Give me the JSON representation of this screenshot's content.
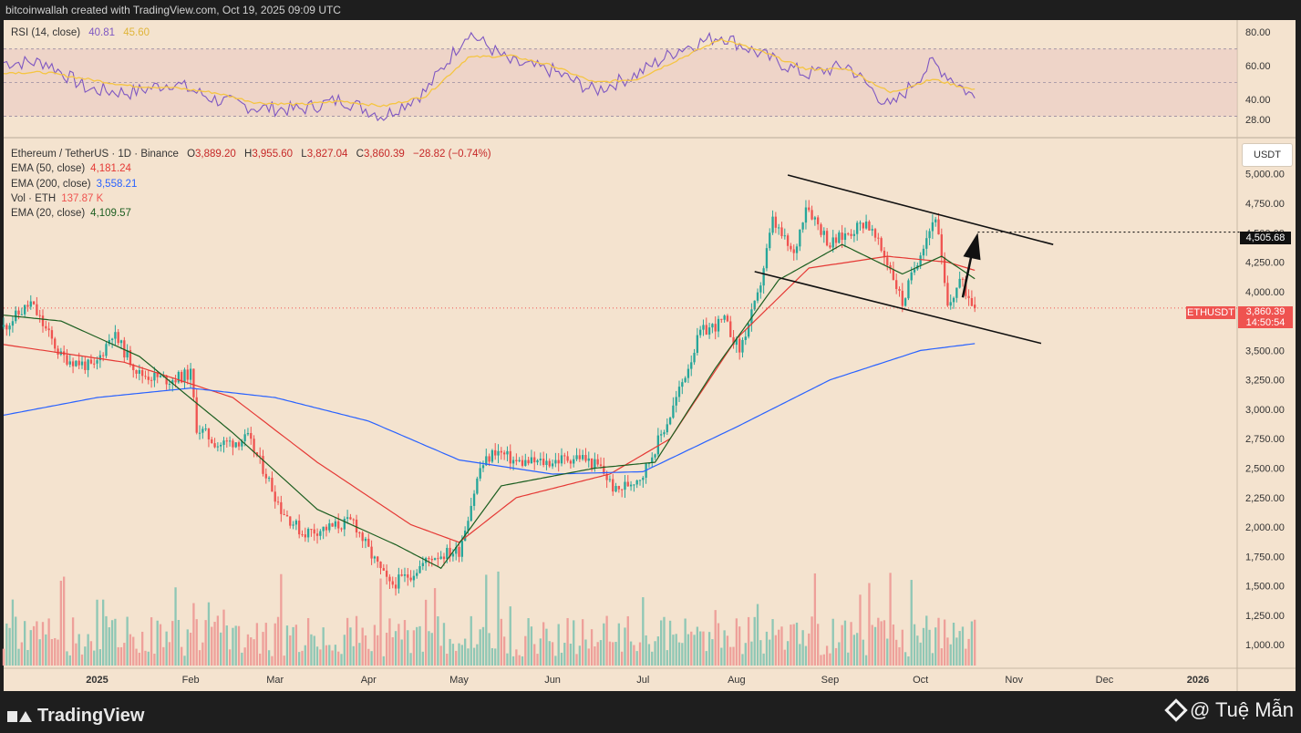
{
  "header": {
    "attribution": "bitcoinwallah created with TradingView.com, Oct 19, 2025 09:09 UTC"
  },
  "rsi_legend": {
    "label": "RSI (14, close)",
    "rsi": "40.81",
    "ma": "45.60"
  },
  "main_legend": {
    "symbol": "Ethereum / TetherUS · 1D · Binance",
    "o_label": "O",
    "o": "3,889.20",
    "h_label": "H",
    "h": "3,955.60",
    "l_label": "L",
    "l": "3,827.04",
    "c_label": "C",
    "c": "3,860.39",
    "change": "−28.82 (−0.74%)",
    "ema50_label": "EMA (50, close)",
    "ema50": "4,181.24",
    "ema200_label": "EMA (200, close)",
    "ema200": "3,558.21",
    "vol_label": "Vol · ETH",
    "vol": "137.87 K",
    "ema20_label": "EMA (20, close)",
    "ema20": "4,109.57"
  },
  "currency_button": "USDT",
  "price_tag": {
    "label": "ETHUSDT",
    "price": "3,860.39",
    "countdown": "14:50:54"
  },
  "target_tag": "4,505.68",
  "footer": {
    "logo": "TradingView",
    "watermark": "@ Tuệ Mẫn"
  },
  "colors": {
    "up": "#26a69a",
    "down": "#ef5350",
    "ema50": "#e53935",
    "ema200": "#2962ff",
    "ema20": "#1b5e20",
    "rsi": "#7e57c2",
    "rsi_ma": "#f5c542"
  },
  "chart_data": [
    {
      "type": "line",
      "name": "RSI (14, close)",
      "ylim": [
        20,
        85
      ],
      "y_ticks": [
        "80.00",
        "60.00",
        "40.00",
        "28.00"
      ],
      "bands": [
        30,
        50,
        70
      ],
      "x": [
        "2024-12-15",
        "2024-12-29",
        "2025-01-12",
        "2025-01-26",
        "2025-02-09",
        "2025-02-23",
        "2025-03-09",
        "2025-03-23",
        "2025-04-06",
        "2025-04-20",
        "2025-05-04",
        "2025-05-18",
        "2025-06-01",
        "2025-06-15",
        "2025-06-29",
        "2025-07-13",
        "2025-07-27",
        "2025-08-10",
        "2025-08-24",
        "2025-09-07",
        "2025-09-21",
        "2025-10-05",
        "2025-10-19"
      ],
      "series": [
        {
          "name": "RSI",
          "values": [
            62,
            46,
            44,
            50,
            40,
            35,
            34,
            40,
            30,
            45,
            80,
            62,
            57,
            45,
            55,
            70,
            78,
            66,
            55,
            60,
            35,
            62,
            40.81
          ]
        },
        {
          "name": "MA",
          "values": [
            56,
            52,
            48,
            47,
            44,
            38,
            37,
            39,
            36,
            42,
            65,
            66,
            60,
            50,
            52,
            64,
            76,
            68,
            58,
            58,
            44,
            52,
            45.6
          ]
        }
      ]
    },
    {
      "type": "candlestick",
      "title": "Ethereum / TetherUS · 1D · Binance",
      "ylabel": "USDT",
      "ylim": [
        800,
        5300
      ],
      "y_ticks": [
        "5,000.00",
        "4,750.00",
        "4,500.00",
        "4,250.00",
        "4,000.00",
        "3,750.00",
        "3,500.00",
        "3,250.00",
        "3,000.00",
        "2,750.00",
        "2,500.00",
        "2,250.00",
        "2,000.00",
        "1,750.00",
        "1,500.00",
        "1,250.00",
        "1,000.00"
      ],
      "x_ticks": [
        "2025",
        "Feb",
        "Mar",
        "Apr",
        "May",
        "Jun",
        "Jul",
        "Aug",
        "Sep",
        "Oct",
        "Nov",
        "Dec",
        "2026"
      ],
      "x_tick_dates": [
        "2025-01-01",
        "2025-02-01",
        "2025-03-01",
        "2025-04-01",
        "2025-05-01",
        "2025-06-01",
        "2025-07-01",
        "2025-08-01",
        "2025-09-01",
        "2025-10-01",
        "2025-11-01",
        "2025-12-01",
        "2026-01-01"
      ],
      "price_path": {
        "dates": [
          "2024-12-01",
          "2024-12-10",
          "2024-12-20",
          "2024-12-31",
          "2025-01-06",
          "2025-01-15",
          "2025-01-25",
          "2025-02-01",
          "2025-02-03",
          "2025-02-10",
          "2025-02-20",
          "2025-02-26",
          "2025-03-03",
          "2025-03-10",
          "2025-03-20",
          "2025-03-27",
          "2025-04-01",
          "2025-04-08",
          "2025-04-15",
          "2025-04-22",
          "2025-05-01",
          "2025-05-08",
          "2025-05-13",
          "2025-05-20",
          "2025-05-30",
          "2025-06-10",
          "2025-06-17",
          "2025-06-22",
          "2025-07-01",
          "2025-07-10",
          "2025-07-20",
          "2025-07-28",
          "2025-08-02",
          "2025-08-08",
          "2025-08-13",
          "2025-08-20",
          "2025-08-24",
          "2025-09-01",
          "2025-09-13",
          "2025-09-21",
          "2025-09-25",
          "2025-10-01",
          "2025-10-06",
          "2025-10-10",
          "2025-10-14",
          "2025-10-19"
        ],
        "prices": [
          3700,
          3900,
          3450,
          3350,
          3650,
          3300,
          3250,
          3300,
          2850,
          2700,
          2750,
          2450,
          2150,
          1950,
          2000,
          2050,
          1800,
          1500,
          1600,
          1750,
          1800,
          2500,
          2650,
          2550,
          2550,
          2600,
          2500,
          2300,
          2450,
          2950,
          3650,
          3750,
          3500,
          3950,
          4600,
          4300,
          4750,
          4400,
          4600,
          4200,
          3900,
          4350,
          4650,
          3850,
          4100,
          3860
        ]
      },
      "series": [
        {
          "name": "EMA (50, close)",
          "dates": [
            "2024-12-01",
            "2025-01-10",
            "2025-02-15",
            "2025-03-15",
            "2025-04-15",
            "2025-05-01",
            "2025-05-20",
            "2025-06-20",
            "2025-07-10",
            "2025-08-01",
            "2025-08-25",
            "2025-09-20",
            "2025-10-10",
            "2025-10-19"
          ],
          "values": [
            3550,
            3400,
            3100,
            2550,
            2020,
            1870,
            2250,
            2450,
            2750,
            3600,
            4200,
            4300,
            4250,
            4181.24
          ]
        },
        {
          "name": "EMA (200, close)",
          "dates": [
            "2024-12-01",
            "2025-01-01",
            "2025-02-01",
            "2025-03-01",
            "2025-04-01",
            "2025-05-01",
            "2025-06-01",
            "2025-07-01",
            "2025-08-01",
            "2025-09-01",
            "2025-10-01",
            "2025-10-19"
          ],
          "values": [
            2950,
            3100,
            3180,
            3100,
            2900,
            2570,
            2450,
            2470,
            2850,
            3250,
            3500,
            3558.21
          ]
        },
        {
          "name": "EMA (20, close)",
          "dates": [
            "2024-12-01",
            "2024-12-20",
            "2025-01-15",
            "2025-02-15",
            "2025-03-15",
            "2025-04-10",
            "2025-04-25",
            "2025-05-15",
            "2025-06-15",
            "2025-07-05",
            "2025-07-25",
            "2025-08-15",
            "2025-09-05",
            "2025-09-25",
            "2025-10-08",
            "2025-10-19"
          ],
          "values": [
            3800,
            3750,
            3450,
            2800,
            2150,
            1850,
            1650,
            2350,
            2500,
            2550,
            3350,
            4100,
            4400,
            4150,
            4300,
            4109.57
          ]
        }
      ],
      "annotations": {
        "channel_upper": {
          "dates": [
            "2025-08-18",
            "2025-11-14"
          ],
          "values": [
            4990,
            4400
          ]
        },
        "channel_lower": {
          "dates": [
            "2025-08-07",
            "2025-11-10"
          ],
          "values": [
            4170,
            3560
          ]
        },
        "target_level": 4505.68,
        "arrow": {
          "from_date": "2025-10-15",
          "from_value": 3950,
          "to_date": "2025-10-20",
          "to_value": 4500
        }
      },
      "last": {
        "open": 3889.2,
        "high": 3955.6,
        "low": 3827.04,
        "close": 3860.39
      }
    }
  ]
}
